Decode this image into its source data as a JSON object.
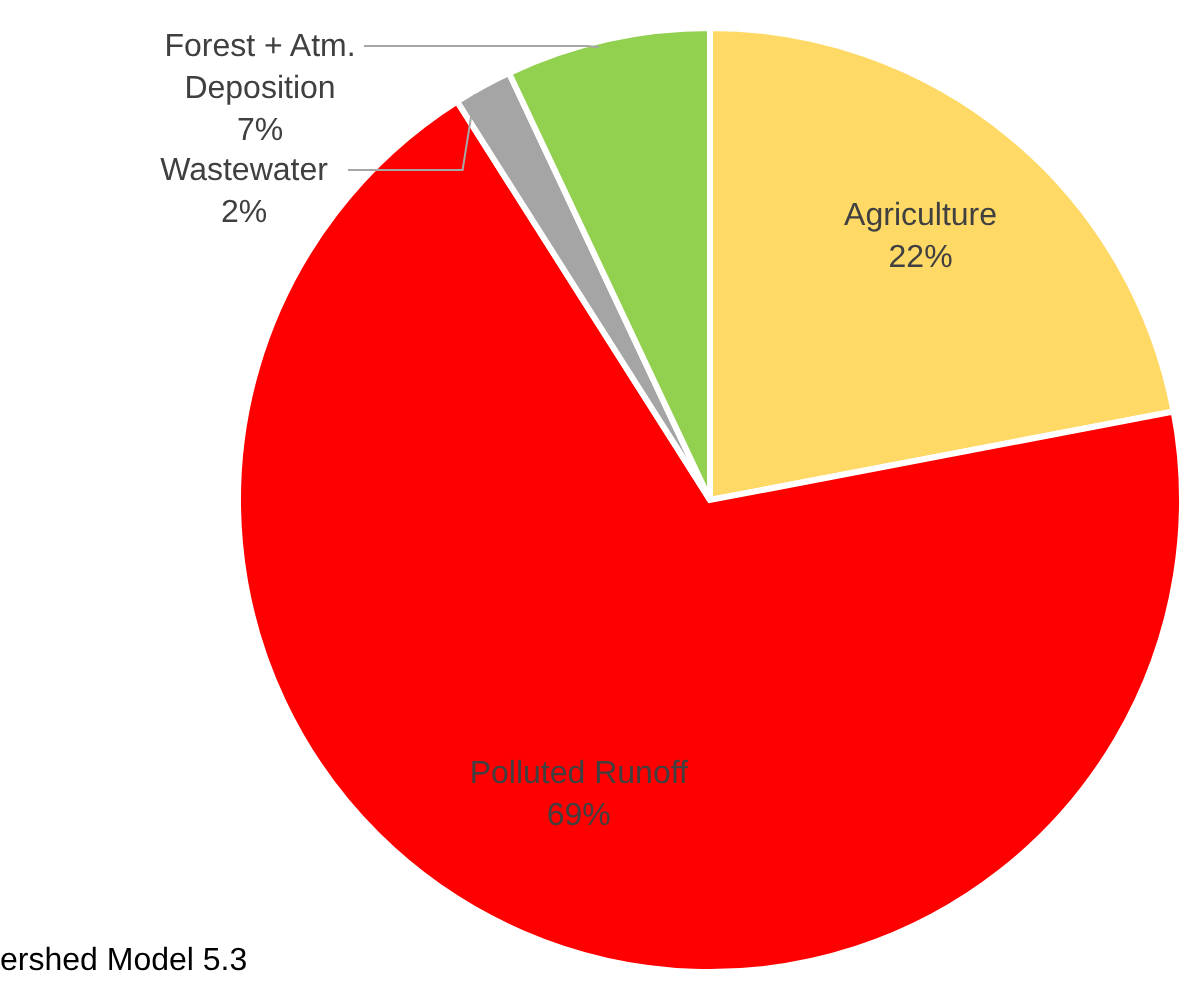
{
  "chart_data": {
    "type": "pie",
    "categories": [
      "Agriculture",
      "Polluted Runoff",
      "Wastewater",
      "Forest + Atm. Deposition"
    ],
    "values": [
      22,
      69,
      2,
      7
    ],
    "value_labels": [
      "22%",
      "69%",
      "2%",
      "7%"
    ],
    "colors": [
      "#ffd966",
      "#ff0000",
      "#a5a5a5",
      "#92d050"
    ],
    "annotations": [
      "ershed Model 5.3"
    ]
  }
}
